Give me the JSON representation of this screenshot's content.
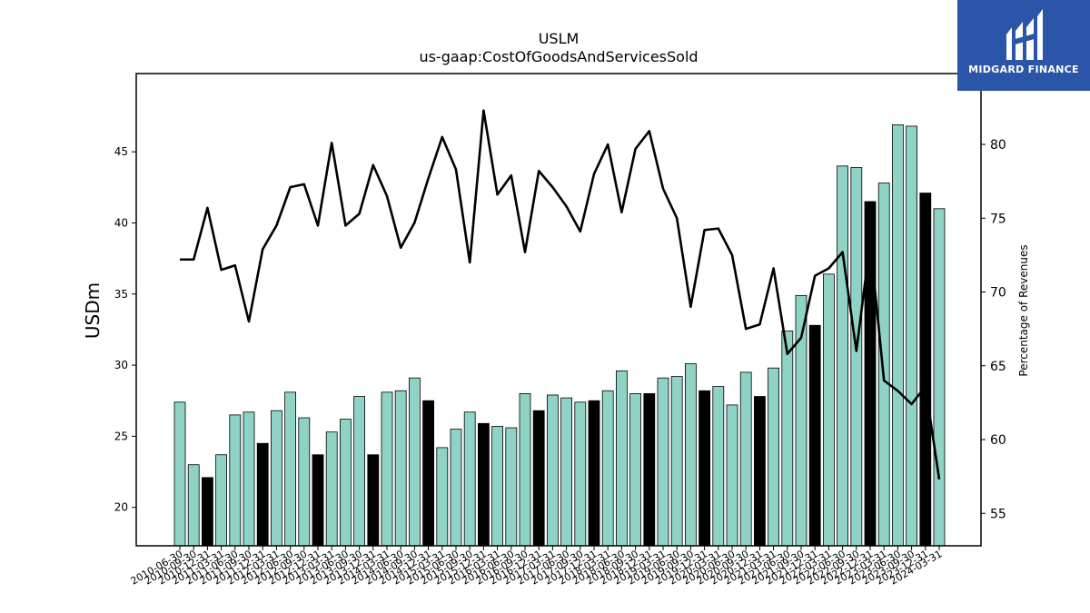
{
  "brand": {
    "name": "MIDGARD FINANCE"
  },
  "chart_data": {
    "type": "bar",
    "title": "USLM",
    "subtitle": "us-gaap:CostOfGoodsAndServicesSold",
    "ylabel": "USDm",
    "y2label": "Percentage of Revenues",
    "ylim": [
      17.3,
      50.5
    ],
    "y2lim": [
      52.8,
      84.8
    ],
    "yticks": [
      20,
      25,
      30,
      35,
      40,
      45
    ],
    "y2ticks": [
      55,
      60,
      65,
      70,
      75,
      80
    ],
    "grid": false,
    "colors": {
      "quarter_bar": "#8ed3c5",
      "annual_bar": "#000000",
      "line": "#000000"
    },
    "categories": [
      "2010-06-30",
      "2010-09-30",
      "2010-12-31",
      "2011-03-31",
      "2011-06-30",
      "2011-09-30",
      "2011-12-31",
      "2012-03-31",
      "2012-06-30",
      "2012-09-30",
      "2012-12-31",
      "2013-03-31",
      "2013-06-30",
      "2013-09-30",
      "2013-12-31",
      "2014-03-31",
      "2014-06-30",
      "2014-09-30",
      "2014-12-31",
      "2015-03-31",
      "2015-06-30",
      "2015-09-30",
      "2015-12-31",
      "2016-03-31",
      "2016-06-30",
      "2016-09-30",
      "2016-12-31",
      "2017-03-31",
      "2017-06-30",
      "2017-09-30",
      "2017-12-31",
      "2018-03-31",
      "2018-06-30",
      "2018-09-30",
      "2018-12-31",
      "2019-03-31",
      "2019-06-30",
      "2019-09-30",
      "2019-12-31",
      "2020-03-31",
      "2020-06-30",
      "2020-09-30",
      "2020-12-31",
      "2021-03-31",
      "2021-06-30",
      "2021-09-30",
      "2021-12-31",
      "2022-03-31",
      "2022-06-30",
      "2022-09-30",
      "2022-12-31",
      "2023-03-31",
      "2023-06-30",
      "2023-09-30",
      "2023-12-31",
      "2024-03-31"
    ],
    "series": [
      {
        "kind": "bar",
        "values": [
          27.4,
          23.0,
          22.1,
          23.7,
          26.5,
          26.7,
          24.5,
          26.8,
          28.1,
          26.3,
          23.7,
          25.3,
          26.2,
          27.8,
          23.7,
          28.1,
          28.2,
          29.1,
          27.5,
          24.2,
          25.5,
          26.7,
          25.9,
          25.7,
          25.6,
          28.0,
          26.8,
          27.9,
          27.7,
          27.4,
          27.5,
          28.2,
          29.6,
          28.0,
          28.0,
          29.1,
          29.2,
          30.1,
          28.2,
          28.5,
          27.2,
          29.5,
          27.8,
          29.8,
          32.4,
          34.9,
          32.8,
          36.4,
          44.0,
          43.9,
          41.5,
          42.8,
          46.9,
          46.8,
          42.1,
          41.0
        ],
        "annual": [
          false,
          false,
          true,
          false,
          false,
          false,
          true,
          false,
          false,
          false,
          true,
          false,
          false,
          false,
          true,
          false,
          false,
          false,
          true,
          false,
          false,
          false,
          true,
          false,
          false,
          false,
          true,
          false,
          false,
          false,
          true,
          false,
          false,
          false,
          true,
          false,
          false,
          false,
          true,
          false,
          false,
          false,
          true,
          false,
          false,
          false,
          true,
          false,
          false,
          false,
          true,
          false,
          false,
          false,
          true,
          false
        ]
      },
      {
        "kind": "line",
        "axis": "right",
        "values": [
          72.2,
          72.2,
          75.7,
          71.5,
          71.8,
          68.0,
          72.9,
          74.5,
          77.1,
          77.3,
          74.5,
          80.1,
          74.5,
          75.3,
          78.6,
          76.5,
          73.0,
          74.7,
          77.7,
          80.5,
          78.3,
          72.0,
          82.3,
          76.6,
          77.9,
          72.7,
          78.2,
          77.1,
          75.8,
          74.1,
          78.0,
          80.0,
          75.4,
          79.7,
          80.9,
          77.0,
          75.0,
          69.0,
          74.2,
          74.3,
          72.5,
          67.5,
          67.8,
          71.6,
          65.8,
          66.9,
          71.1,
          71.6,
          72.7,
          66.0,
          73.4,
          64.0,
          63.3,
          62.4,
          63.6,
          57.3
        ]
      }
    ]
  }
}
